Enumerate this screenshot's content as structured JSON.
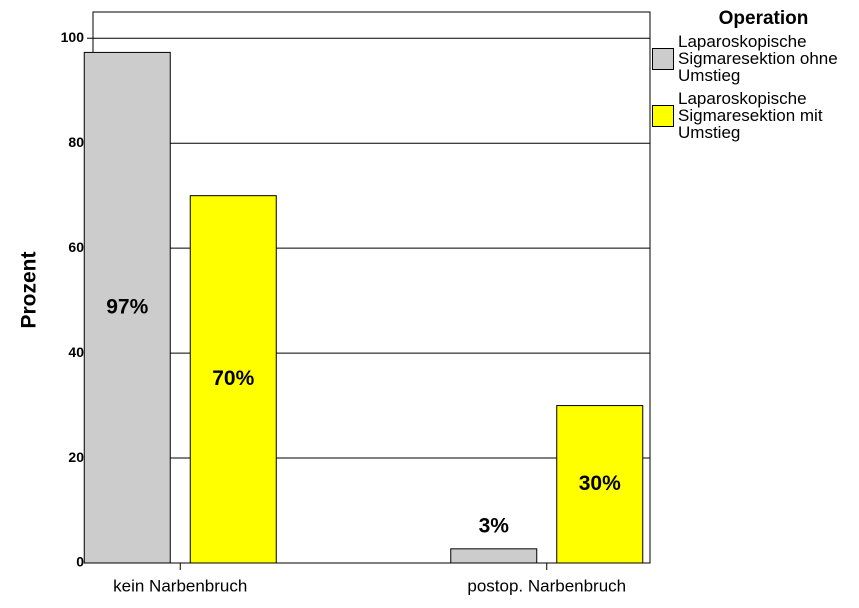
{
  "chart_data": {
    "type": "bar",
    "ylabel": "Prozent",
    "categories": [
      "kein Narbenbruch",
      "postop. Narbenbruch"
    ],
    "ylim": [
      0,
      105
    ],
    "yticks": [
      0,
      20,
      40,
      60,
      80,
      100
    ],
    "grid": true,
    "legend_title": "Operation",
    "series": [
      {
        "name": "Laparoskopische Sigmaresektion ohne Umstieg",
        "color": "#cccccc",
        "values": [
          97.3,
          2.7
        ],
        "value_labels": [
          "97%",
          "3%"
        ]
      },
      {
        "name": "Laparoskopische Sigmaresektion mit Umstieg",
        "color": "#ffff00",
        "values": [
          70,
          30
        ],
        "value_labels": [
          "70%",
          "30%"
        ]
      }
    ]
  }
}
